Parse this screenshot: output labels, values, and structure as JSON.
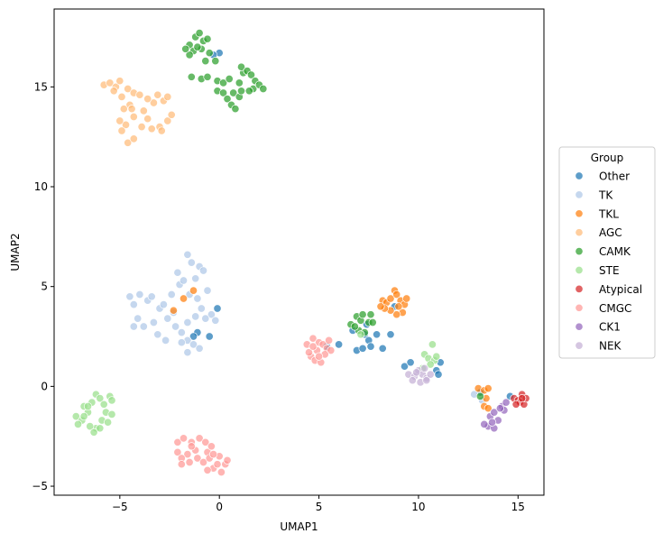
{
  "chart_data": {
    "type": "scatter",
    "xlabel": "UMAP1",
    "ylabel": "UMAP2",
    "xlim": [
      -8.3,
      16.3
    ],
    "ylim": [
      -5.45,
      18.9
    ],
    "x_ticks": [
      -5,
      0,
      5,
      10,
      15
    ],
    "y_ticks": [
      -5,
      0,
      5,
      10,
      15
    ],
    "grid": false,
    "legend": {
      "title": "Group",
      "placement": "center-right-outside"
    },
    "series": [
      {
        "name": "Other",
        "color": "#1f77b4",
        "points": [
          [
            0,
            16.7
          ],
          [
            -0.3,
            16.6
          ],
          [
            -1.1,
            2.7
          ],
          [
            -1.3,
            2.5
          ],
          [
            -0.5,
            2.5
          ],
          [
            -0.1,
            3.9
          ],
          [
            5.4,
            2.0
          ],
          [
            6.0,
            2.1
          ],
          [
            6.7,
            2.8
          ],
          [
            6.9,
            1.8
          ],
          [
            7.2,
            1.9
          ],
          [
            7.3,
            2.6
          ],
          [
            7.5,
            2.3
          ],
          [
            7.6,
            2.0
          ],
          [
            7.4,
            3.1
          ],
          [
            7.9,
            2.6
          ],
          [
            8.2,
            1.9
          ],
          [
            8.6,
            2.6
          ],
          [
            8.8,
            4.0
          ],
          [
            9.3,
            1.0
          ],
          [
            9.6,
            1.2
          ],
          [
            10.9,
            0.8
          ],
          [
            11.1,
            1.2
          ],
          [
            11.0,
            0.6
          ],
          [
            13.1,
            -0.3
          ],
          [
            14.6,
            -0.5
          ]
        ]
      },
      {
        "name": "TK",
        "color": "#aec7e8",
        "points": [
          [
            -4.5,
            4.5
          ],
          [
            -4.3,
            4.1
          ],
          [
            -4.0,
            4.6
          ],
          [
            -3.6,
            4.3
          ],
          [
            -4.1,
            3.4
          ],
          [
            -3.8,
            3.0
          ],
          [
            -3.3,
            3.2
          ],
          [
            -3.0,
            3.9
          ],
          [
            -2.6,
            3.4
          ],
          [
            -2.2,
            3.0
          ],
          [
            -2.7,
            2.3
          ],
          [
            -2.4,
            4.6
          ],
          [
            -2.0,
            5.1
          ],
          [
            -2.1,
            5.7
          ],
          [
            -1.6,
            6.6
          ],
          [
            -1.4,
            6.2
          ],
          [
            -1.0,
            6.0
          ],
          [
            -1.2,
            5.4
          ],
          [
            -0.8,
            5.8
          ],
          [
            -1.8,
            5.3
          ],
          [
            -1.5,
            4.6
          ],
          [
            -1.1,
            4.4
          ],
          [
            -0.6,
            4.8
          ],
          [
            -0.9,
            3.9
          ],
          [
            -0.4,
            3.6
          ],
          [
            -0.2,
            3.3
          ],
          [
            -1.6,
            3.2
          ],
          [
            -1.2,
            3.5
          ],
          [
            -1.9,
            2.7
          ],
          [
            -1.6,
            2.3
          ],
          [
            -1.3,
            2.1
          ],
          [
            -1.0,
            1.9
          ],
          [
            -1.6,
            1.7
          ],
          [
            -1.9,
            2.2
          ],
          [
            -2.3,
            3.7
          ],
          [
            -3.1,
            2.6
          ],
          [
            -3.4,
            4.5
          ],
          [
            -4.3,
            3.0
          ],
          [
            -2.8,
            4.1
          ],
          [
            -0.7,
            3.4
          ],
          [
            12.8,
            -0.4
          ],
          [
            13.2,
            -0.7
          ]
        ]
      },
      {
        "name": "TKL",
        "color": "#ff7f0e",
        "points": [
          [
            -1.3,
            4.8
          ],
          [
            -1.8,
            4.4
          ],
          [
            -2.3,
            3.8
          ],
          [
            8.2,
            4.3
          ],
          [
            8.4,
            4.2
          ],
          [
            8.6,
            4.4
          ],
          [
            8.8,
            4.8
          ],
          [
            8.9,
            4.6
          ],
          [
            9.1,
            4.3
          ],
          [
            9.3,
            4.1
          ],
          [
            9.2,
            3.7
          ],
          [
            8.9,
            3.6
          ],
          [
            8.6,
            3.8
          ],
          [
            8.3,
            3.9
          ],
          [
            8.1,
            4.0
          ],
          [
            9.4,
            4.4
          ],
          [
            9.0,
            4.0
          ],
          [
            13.0,
            -0.1
          ],
          [
            13.3,
            -0.2
          ],
          [
            13.5,
            -0.1
          ],
          [
            13.4,
            -0.6
          ],
          [
            13.3,
            -1.0
          ],
          [
            13.5,
            -1.1
          ]
        ]
      },
      {
        "name": "AGC",
        "color": "#ffbb78",
        "points": [
          [
            -5.8,
            15.1
          ],
          [
            -5.5,
            15.2
          ],
          [
            -5.2,
            15.0
          ],
          [
            -5.0,
            15.3
          ],
          [
            -5.3,
            14.8
          ],
          [
            -4.9,
            14.5
          ],
          [
            -4.6,
            14.9
          ],
          [
            -4.3,
            14.7
          ],
          [
            -4.0,
            14.6
          ],
          [
            -4.5,
            14.1
          ],
          [
            -4.8,
            13.9
          ],
          [
            -4.3,
            13.5
          ],
          [
            -4.7,
            13.1
          ],
          [
            -4.9,
            12.8
          ],
          [
            -4.6,
            12.2
          ],
          [
            -4.3,
            12.4
          ],
          [
            -3.9,
            13.0
          ],
          [
            -3.6,
            13.4
          ],
          [
            -3.4,
            12.9
          ],
          [
            -3.0,
            13.0
          ],
          [
            -3.3,
            14.2
          ],
          [
            -3.6,
            14.4
          ],
          [
            -3.1,
            14.6
          ],
          [
            -2.8,
            14.3
          ],
          [
            -2.6,
            14.5
          ],
          [
            -2.9,
            12.8
          ],
          [
            -2.6,
            13.3
          ],
          [
            -2.4,
            13.6
          ],
          [
            -3.8,
            13.8
          ],
          [
            -5.0,
            13.3
          ],
          [
            -4.4,
            13.9
          ]
        ]
      },
      {
        "name": "CAMK",
        "color": "#2ca02c",
        "points": [
          [
            -1.5,
            17.1
          ],
          [
            -1.2,
            17.5
          ],
          [
            -1.0,
            17.7
          ],
          [
            -0.8,
            17.3
          ],
          [
            -0.6,
            17.4
          ],
          [
            -1.3,
            16.8
          ],
          [
            -0.9,
            16.9
          ],
          [
            -0.5,
            16.7
          ],
          [
            -1.5,
            16.6
          ],
          [
            -0.7,
            16.3
          ],
          [
            -0.2,
            16.3
          ],
          [
            -1.4,
            15.5
          ],
          [
            -0.9,
            15.4
          ],
          [
            -0.6,
            15.5
          ],
          [
            -0.1,
            15.3
          ],
          [
            0.2,
            15.2
          ],
          [
            0.5,
            15.4
          ],
          [
            -0.1,
            14.8
          ],
          [
            0.2,
            14.7
          ],
          [
            0.4,
            14.4
          ],
          [
            0.7,
            14.7
          ],
          [
            1.0,
            14.5
          ],
          [
            1.1,
            14.8
          ],
          [
            0.6,
            14.1
          ],
          [
            0.8,
            13.9
          ],
          [
            1.0,
            15.2
          ],
          [
            1.2,
            15.7
          ],
          [
            1.1,
            16.0
          ],
          [
            1.4,
            15.8
          ],
          [
            1.6,
            15.6
          ],
          [
            1.8,
            15.3
          ],
          [
            1.7,
            14.9
          ],
          [
            2.0,
            15.1
          ],
          [
            2.2,
            14.9
          ],
          [
            1.5,
            14.8
          ],
          [
            -1.7,
            16.9
          ],
          [
            -1.1,
            17.0
          ],
          [
            6.6,
            3.1
          ],
          [
            6.9,
            3.5
          ],
          [
            7.1,
            3.3
          ],
          [
            7.2,
            3.6
          ],
          [
            7.5,
            3.2
          ],
          [
            7.6,
            3.6
          ],
          [
            7.0,
            2.8
          ],
          [
            7.3,
            2.7
          ],
          [
            6.8,
            3.0
          ],
          [
            7.7,
            3.2
          ],
          [
            13.1,
            -0.5
          ]
        ]
      },
      {
        "name": "STE",
        "color": "#98df8a",
        "points": [
          [
            -7.2,
            -1.5
          ],
          [
            -6.9,
            -1.7
          ],
          [
            -6.6,
            -1.3
          ],
          [
            -6.8,
            -1.0
          ],
          [
            -6.4,
            -0.8
          ],
          [
            -6.2,
            -0.4
          ],
          [
            -6.0,
            -0.6
          ],
          [
            -5.8,
            -0.9
          ],
          [
            -5.5,
            -0.5
          ],
          [
            -5.4,
            -0.7
          ],
          [
            -5.7,
            -1.3
          ],
          [
            -5.4,
            -1.4
          ],
          [
            -5.9,
            -1.7
          ],
          [
            -6.2,
            -2.1
          ],
          [
            -6.5,
            -2.0
          ],
          [
            -6.8,
            -1.5
          ],
          [
            -7.1,
            -1.9
          ],
          [
            -6.3,
            -2.3
          ],
          [
            -6.0,
            -2.1
          ],
          [
            -6.6,
            -1.0
          ],
          [
            -5.6,
            -1.8
          ],
          [
            10.3,
            1.6
          ],
          [
            10.5,
            1.4
          ],
          [
            10.8,
            1.3
          ],
          [
            10.6,
            1.1
          ],
          [
            10.9,
            1.5
          ],
          [
            10.7,
            2.1
          ],
          [
            10.2,
            0.9
          ],
          [
            7.1,
            2.6
          ]
        ]
      },
      {
        "name": "Atypical",
        "color": "#d62728",
        "points": [
          [
            14.8,
            -0.6
          ],
          [
            15.0,
            -0.7
          ],
          [
            15.2,
            -0.4
          ],
          [
            15.1,
            -0.8
          ],
          [
            15.3,
            -0.9
          ],
          [
            14.9,
            -0.9
          ],
          [
            15.4,
            -0.6
          ],
          [
            15.2,
            -0.6
          ]
        ]
      },
      {
        "name": "CMGC",
        "color": "#ff9896",
        "points": [
          [
            -2.1,
            -2.8
          ],
          [
            -1.8,
            -2.6
          ],
          [
            -1.4,
            -2.8
          ],
          [
            -1.0,
            -2.6
          ],
          [
            -0.7,
            -2.8
          ],
          [
            -0.6,
            -3.3
          ],
          [
            -0.4,
            -3.0
          ],
          [
            -1.2,
            -3.2
          ],
          [
            -1.6,
            -3.4
          ],
          [
            -2.1,
            -3.3
          ],
          [
            -1.9,
            -3.6
          ],
          [
            -1.5,
            -3.8
          ],
          [
            -1.1,
            -3.6
          ],
          [
            -0.8,
            -3.8
          ],
          [
            -0.5,
            -3.6
          ],
          [
            -0.3,
            -4.1
          ],
          [
            -0.1,
            -3.9
          ],
          [
            0.1,
            -4.3
          ],
          [
            0.3,
            -3.9
          ],
          [
            0.4,
            -3.7
          ],
          [
            0.0,
            -3.5
          ],
          [
            -0.3,
            -3.4
          ],
          [
            -0.6,
            -4.2
          ],
          [
            -1.9,
            -3.9
          ],
          [
            -1.4,
            -3.0
          ],
          [
            4.4,
            2.1
          ],
          [
            4.7,
            2.4
          ],
          [
            5.0,
            2.2
          ],
          [
            5.2,
            2.1
          ],
          [
            5.4,
            1.9
          ],
          [
            5.6,
            1.8
          ],
          [
            4.6,
            1.5
          ],
          [
            4.8,
            1.3
          ],
          [
            5.1,
            1.2
          ],
          [
            4.5,
            1.7
          ],
          [
            4.9,
            1.8
          ],
          [
            5.3,
            1.6
          ],
          [
            4.7,
            2.0
          ],
          [
            5.0,
            1.5
          ],
          [
            5.5,
            2.3
          ]
        ]
      },
      {
        "name": "CK1",
        "color": "#9467bd",
        "points": [
          [
            13.6,
            -1.5
          ],
          [
            13.8,
            -1.3
          ],
          [
            14.0,
            -1.7
          ],
          [
            13.5,
            -2.0
          ],
          [
            13.8,
            -2.1
          ],
          [
            14.2,
            -1.0
          ],
          [
            14.4,
            -0.8
          ],
          [
            14.3,
            -1.2
          ],
          [
            13.3,
            -1.9
          ],
          [
            13.7,
            -1.8
          ],
          [
            14.1,
            -1.1
          ]
        ]
      },
      {
        "name": "NEK",
        "color": "#c5b0d5",
        "points": [
          [
            9.5,
            0.6
          ],
          [
            9.8,
            0.5
          ],
          [
            10.0,
            0.8
          ],
          [
            10.2,
            0.6
          ],
          [
            10.4,
            0.4
          ],
          [
            10.6,
            0.6
          ],
          [
            10.3,
            0.9
          ],
          [
            9.7,
            0.3
          ],
          [
            10.1,
            0.2
          ],
          [
            10.4,
            0.3
          ],
          [
            9.9,
            0.7
          ]
        ]
      }
    ]
  }
}
